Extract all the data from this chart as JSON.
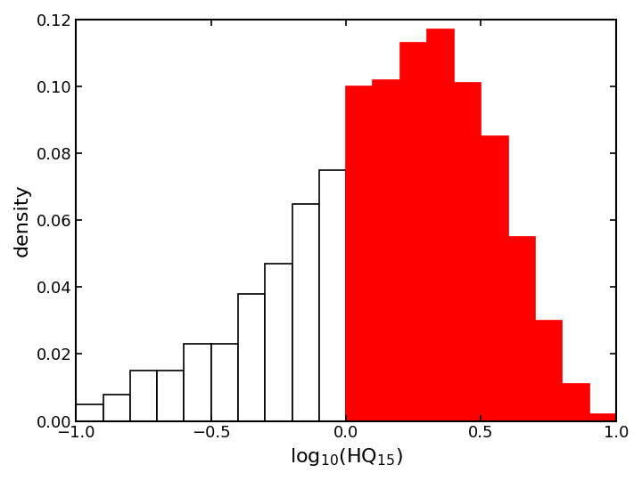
{
  "bar_left_edges": [
    -1.0,
    -0.9,
    -0.8,
    -0.7,
    -0.6,
    -0.5,
    -0.4,
    -0.3,
    -0.2,
    -0.1,
    0.0,
    0.1,
    0.2,
    0.3,
    0.4,
    0.5,
    0.6,
    0.7,
    0.8,
    0.9
  ],
  "bar_heights": [
    0.005,
    0.008,
    0.015,
    0.015,
    0.023,
    0.023,
    0.038,
    0.047,
    0.065,
    0.075,
    0.1,
    0.102,
    0.113,
    0.117,
    0.101,
    0.085,
    0.055,
    0.03,
    0.011,
    0.002
  ],
  "bar_colors": [
    "white",
    "white",
    "white",
    "white",
    "white",
    "white",
    "white",
    "white",
    "white",
    "white",
    "red",
    "red",
    "red",
    "red",
    "red",
    "red",
    "red",
    "red",
    "red",
    "red"
  ],
  "bar_edgecolors": [
    "black",
    "black",
    "black",
    "black",
    "black",
    "black",
    "black",
    "black",
    "black",
    "black",
    "red",
    "red",
    "red",
    "red",
    "red",
    "red",
    "red",
    "red",
    "red",
    "red"
  ],
  "xlim": [
    -1.0,
    1.0
  ],
  "ylim": [
    0,
    0.12
  ],
  "xticks": [
    -1,
    -0.5,
    0,
    0.5,
    1
  ],
  "yticks": [
    0,
    0.02,
    0.04,
    0.06,
    0.08,
    0.1,
    0.12
  ],
  "xlabel": "log$_{10}$(HQ$_{15}$)",
  "ylabel": "density",
  "xlabel_fontsize": 16,
  "ylabel_fontsize": 16,
  "tick_fontsize": 13,
  "bar_width": 0.1,
  "figure_facecolor": "white",
  "axes_facecolor": "white"
}
